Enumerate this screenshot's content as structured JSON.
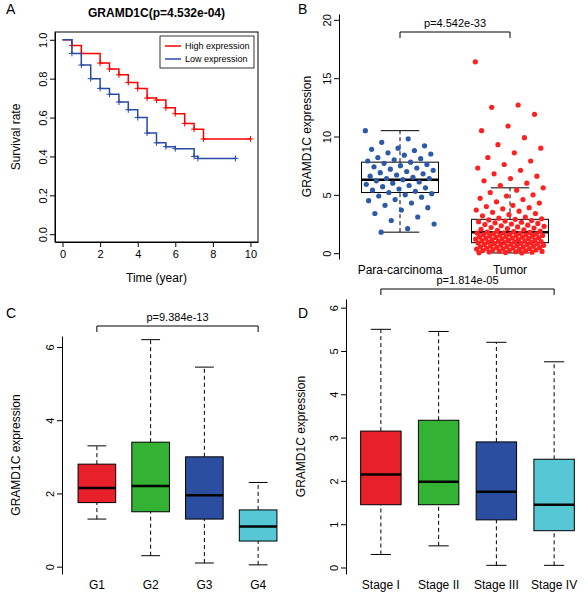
{
  "chart_data": [
    {
      "type": "line",
      "panel": "A",
      "title": "GRAMD1C(p=4.532e-04)",
      "x_label": "Time (year)",
      "y_label": "Survival rate",
      "xlim": [
        -0.4,
        10.4
      ],
      "xticks": [
        0,
        2,
        4,
        6,
        8,
        10
      ],
      "ylim": [
        -0.04,
        1.04
      ],
      "yticks": [
        {
          "value": 0,
          "label": "0.0"
        },
        {
          "value": 0.2,
          "label": "0.2"
        },
        {
          "value": 0.4,
          "label": "0.4"
        },
        {
          "value": 0.6,
          "label": "0.6"
        },
        {
          "value": 0.8,
          "label": "0.8"
        },
        {
          "value": 1,
          "label": "1.0"
        }
      ],
      "legend": "topright",
      "marker": "plus",
      "line_style": "step",
      "series": [
        {
          "name": "High expression",
          "color": "#ff0000",
          "x": [
            0,
            0.5,
            1,
            2,
            2.5,
            3,
            3.5,
            4,
            4.5,
            5,
            5.5,
            6,
            6.5,
            7,
            7.5,
            10
          ],
          "values": [
            1.0,
            0.97,
            0.93,
            0.88,
            0.85,
            0.82,
            0.78,
            0.75,
            0.7,
            0.69,
            0.65,
            0.62,
            0.57,
            0.54,
            0.49,
            0.49
          ]
        },
        {
          "name": "Low expression",
          "color": "#2a4ba5",
          "x": [
            0,
            0.5,
            1,
            1.5,
            2,
            2.5,
            3,
            3.5,
            4,
            4.5,
            5,
            5.5,
            6,
            7,
            7.2,
            9.2
          ],
          "values": [
            1.0,
            0.93,
            0.87,
            0.8,
            0.75,
            0.72,
            0.68,
            0.64,
            0.6,
            0.52,
            0.47,
            0.45,
            0.44,
            0.4,
            0.39,
            0.39
          ]
        }
      ]
    },
    {
      "type": "box",
      "panel": "B",
      "y_label": "GRAMD1C expression",
      "annotations": [
        "p=4.542e-33"
      ],
      "categories": [
        "Para-carcinoma",
        "Tumor"
      ],
      "colors": [
        "#2b5aa8",
        "#ff2020"
      ],
      "ylim": [
        -0.5,
        20.5
      ],
      "yticks": [
        0,
        5,
        10,
        15,
        20
      ],
      "whisker_low": [
        1.8,
        0.02
      ],
      "q1": [
        5.2,
        0.9
      ],
      "median": [
        6.3,
        1.8
      ],
      "q3": [
        7.8,
        2.9
      ],
      "whisker_high": [
        10.5,
        5.6
      ],
      "points": [
        [
          10.5,
          9.8,
          9.5,
          9.2,
          9.0,
          8.9,
          8.8,
          8.6,
          8.5,
          8.4,
          8.2,
          8.1,
          8.0,
          7.9,
          7.8,
          7.7,
          7.6,
          7.5,
          7.4,
          7.3,
          7.2,
          7.1,
          7.0,
          6.9,
          6.8,
          6.7,
          6.6,
          6.5,
          6.4,
          6.4,
          6.3,
          6.2,
          6.1,
          6.0,
          5.9,
          5.8,
          5.7,
          5.6,
          5.5,
          5.4,
          5.3,
          5.2,
          5.1,
          5.0,
          4.9,
          4.8,
          4.6,
          4.5,
          4.3,
          4.1,
          3.9,
          3.7,
          3.4,
          3.1,
          2.8,
          2.5,
          2.1,
          1.8
        ],
        [
          16.4,
          12.7,
          12.5,
          11.9,
          10.9,
          10.5,
          9.9,
          9.3,
          9.0,
          8.6,
          8.2,
          7.9,
          7.6,
          7.3,
          7.1,
          6.8,
          6.6,
          6.4,
          6.2,
          6.0,
          5.8,
          5.6,
          5.4,
          5.2,
          5.0,
          4.9,
          4.7,
          4.6,
          4.4,
          4.3,
          4.1,
          4.0,
          3.9,
          3.8,
          3.7,
          3.6,
          3.5,
          3.4,
          3.3,
          3.2,
          3.1,
          3.0,
          2.95,
          2.9,
          2.85,
          2.8,
          2.75,
          2.7,
          2.65,
          2.6,
          2.55,
          2.5,
          2.45,
          2.4,
          2.35,
          2.3,
          2.25,
          2.2,
          2.15,
          2.1,
          2.05,
          2.0,
          1.95,
          1.9,
          1.85,
          1.8,
          1.78,
          1.75,
          1.72,
          1.7,
          1.68,
          1.65,
          1.62,
          1.6,
          1.57,
          1.55,
          1.52,
          1.5,
          1.47,
          1.45,
          1.42,
          1.4,
          1.37,
          1.35,
          1.32,
          1.3,
          1.27,
          1.25,
          1.22,
          1.2,
          1.17,
          1.15,
          1.12,
          1.1,
          1.07,
          1.05,
          1.02,
          1.0,
          0.97,
          0.95,
          0.92,
          0.9,
          0.87,
          0.85,
          0.82,
          0.8,
          0.77,
          0.75,
          0.72,
          0.7,
          0.67,
          0.65,
          0.62,
          0.6,
          0.57,
          0.55,
          0.52,
          0.5,
          0.47,
          0.45,
          0.42,
          0.4,
          0.37,
          0.35,
          0.32,
          0.3,
          0.27,
          0.25,
          0.22,
          0.2,
          0.17,
          0.15,
          0.12,
          0.1,
          0.08,
          0.05,
          0.03,
          0.02
        ]
      ]
    },
    {
      "type": "box",
      "panel": "C",
      "y_label": "GRAMD1C expression",
      "annotations": [
        "p=9.384e-13"
      ],
      "categories": [
        "G1",
        "G2",
        "G3",
        "G4"
      ],
      "colors": [
        "#e8202a",
        "#33b233",
        "#2b4ea0",
        "#56c8d5"
      ],
      "ylim": [
        -0.2,
        6.3
      ],
      "yticks": [
        0,
        2,
        4,
        6
      ],
      "whisker_low": [
        1.3,
        0.3,
        0.1,
        0.05
      ],
      "q1": [
        1.75,
        1.5,
        1.3,
        0.7
      ],
      "median": [
        2.15,
        2.2,
        1.95,
        1.1
      ],
      "q3": [
        2.8,
        3.4,
        3.0,
        1.55
      ],
      "whisker_high": [
        3.3,
        6.2,
        5.45,
        2.3
      ]
    },
    {
      "type": "box",
      "panel": "D",
      "y_label": "GRAMD1C expression",
      "annotations": [
        "p=1.814e-05"
      ],
      "categories": [
        "Stage I",
        "Stage II",
        "Stage III",
        "Stage IV"
      ],
      "colors": [
        "#e8202a",
        "#33b233",
        "#2b4ea0",
        "#56c8d5"
      ],
      "ylim": [
        -0.15,
        6.2
      ],
      "yticks": [
        0,
        1,
        2,
        3,
        4,
        5,
        6
      ],
      "whisker_low": [
        0.3,
        0.5,
        0.05,
        0.05
      ],
      "q1": [
        1.45,
        1.45,
        1.1,
        0.85
      ],
      "median": [
        2.15,
        1.98,
        1.75,
        1.45
      ],
      "q3": [
        3.15,
        3.4,
        2.9,
        2.5
      ],
      "whisker_high": [
        5.5,
        5.45,
        5.2,
        4.75
      ]
    }
  ]
}
